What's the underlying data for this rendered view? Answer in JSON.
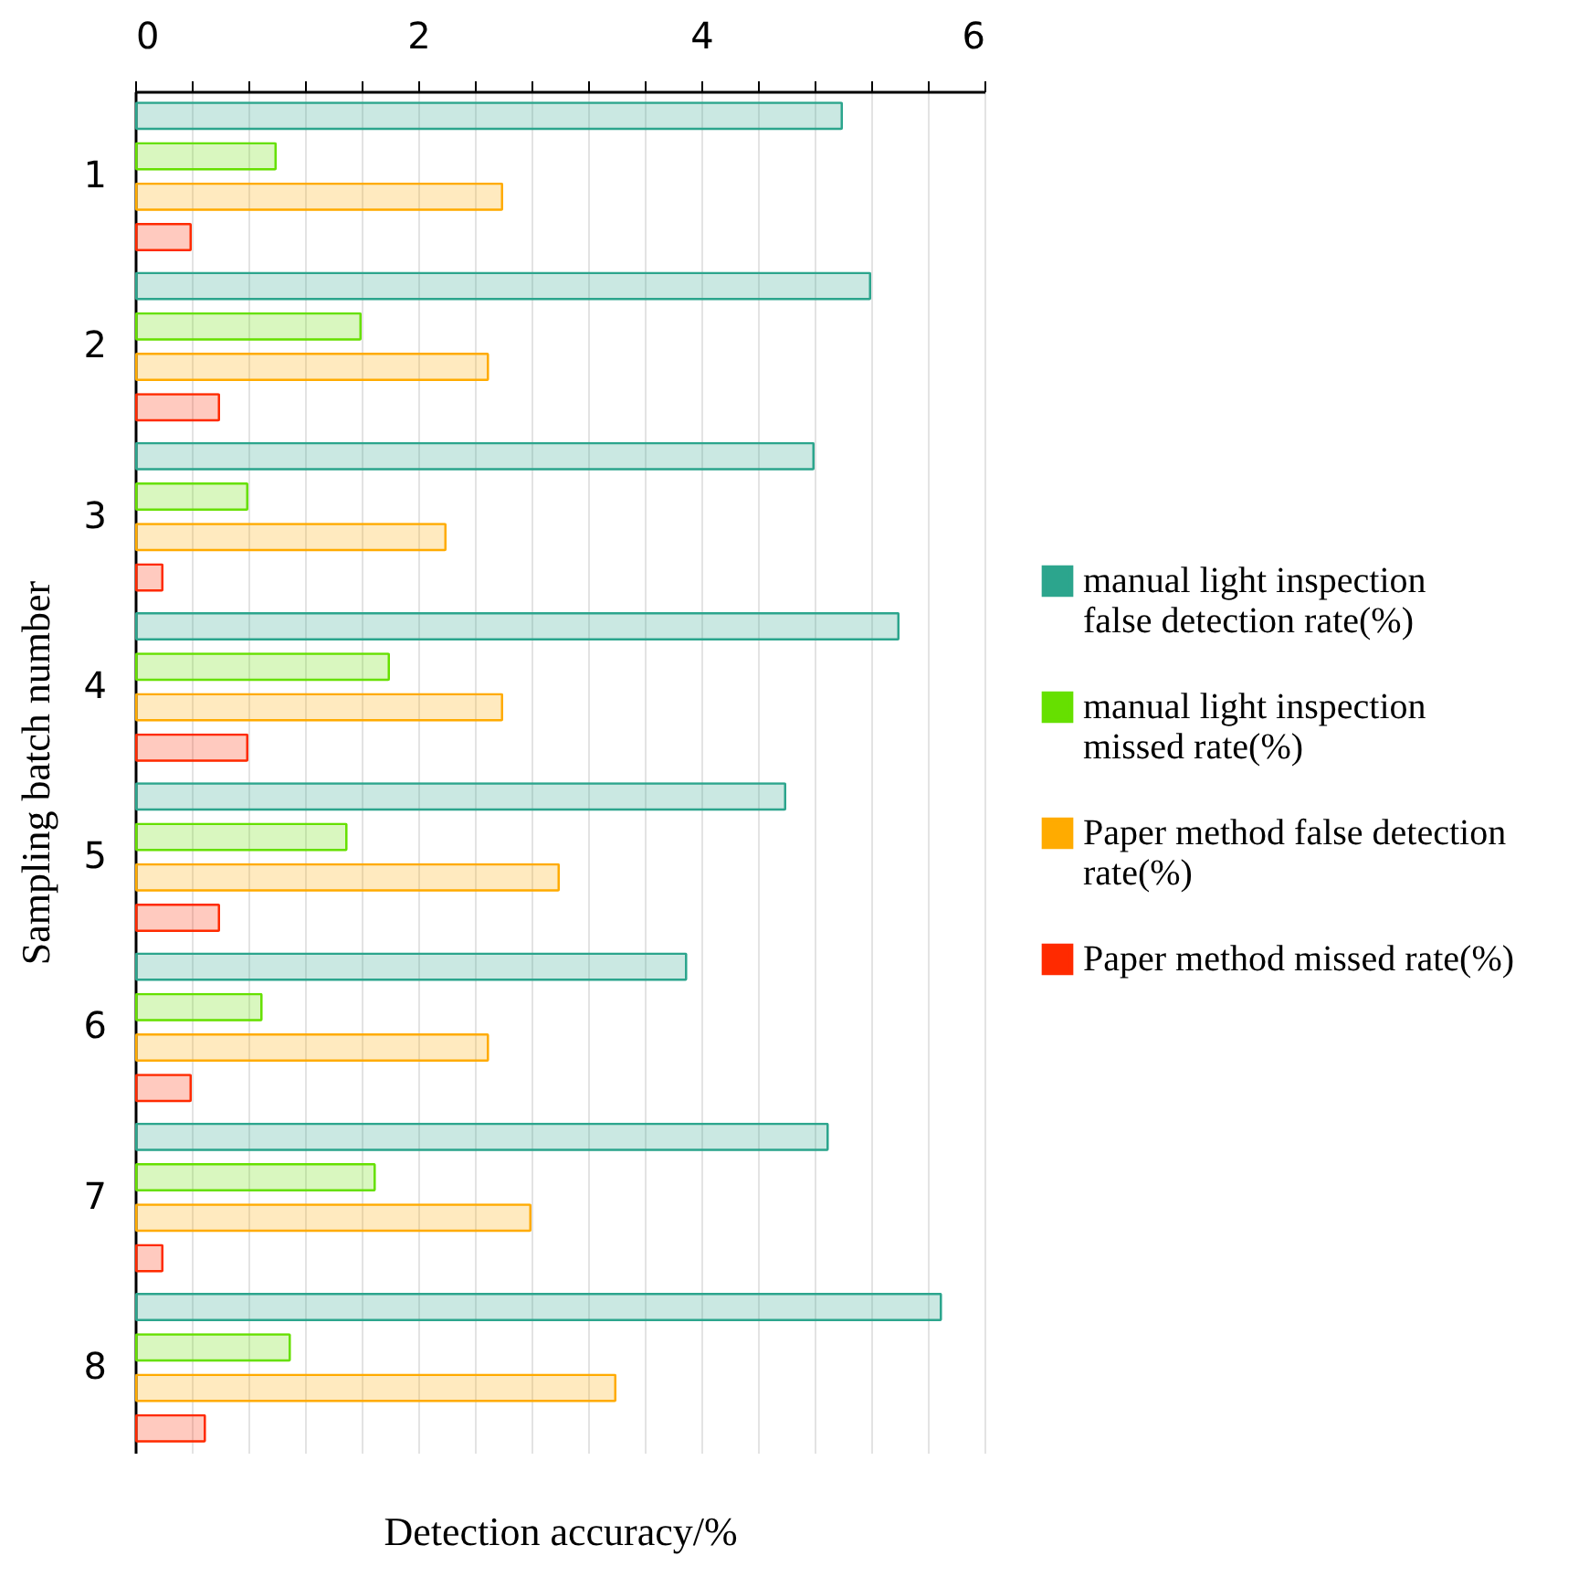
{
  "chart_data": {
    "type": "bar",
    "orientation": "horizontal",
    "xlabel": "Detection accuracy/%",
    "ylabel": "Sampling batch number",
    "categories": [
      "1",
      "2",
      "3",
      "4",
      "5",
      "6",
      "7",
      "8"
    ],
    "series": [
      {
        "name": "manual light inspection false detection rate(%)",
        "color": "#2ca58d",
        "values": [
          5.0,
          5.2,
          4.8,
          5.4,
          4.6,
          3.9,
          4.9,
          5.7
        ]
      },
      {
        "name": "manual light inspection missed rate(%)",
        "color": "#66e000",
        "values": [
          1.0,
          1.6,
          0.8,
          1.8,
          1.5,
          0.9,
          1.7,
          1.1
        ]
      },
      {
        "name": "Paper method false detection rate(%)",
        "color": "#ffab00",
        "values": [
          2.6,
          2.5,
          2.2,
          2.6,
          3.0,
          2.5,
          2.8,
          3.4
        ]
      },
      {
        "name": "Paper method missed rate(%)",
        "color": "#ff2a00",
        "values": [
          0.4,
          0.6,
          0.2,
          0.8,
          0.6,
          0.4,
          0.2,
          0.5
        ]
      }
    ],
    "xlim": [
      0,
      6
    ],
    "xticks": [
      0,
      {
        "value": 0.4,
        "label": null
      },
      {
        "value": 0.8,
        "label": null
      },
      {
        "value": 1.2,
        "label": null
      },
      {
        "value": 1.6,
        "label": null
      },
      2,
      {
        "value": 2.4,
        "label": null
      },
      {
        "value": 2.8,
        "label": null
      },
      {
        "value": 3.2,
        "label": null
      },
      {
        "value": 3.6,
        "label": null
      },
      4,
      {
        "value": 4.4,
        "label": null
      },
      {
        "value": 4.8,
        "label": null
      },
      {
        "value": 5.2,
        "label": null
      },
      {
        "value": 5.6,
        "label": null
      },
      6
    ],
    "grid": "x",
    "legend": "right"
  }
}
